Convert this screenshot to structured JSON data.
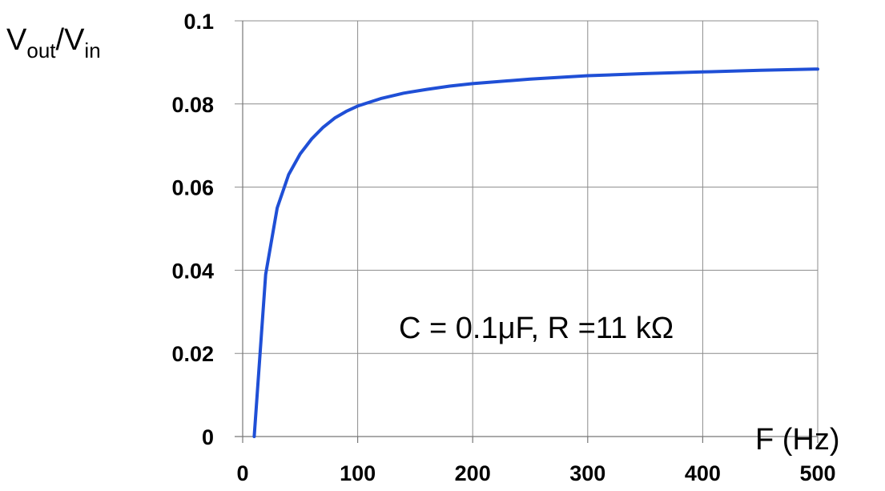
{
  "chart_data": {
    "type": "line",
    "ylabel": {
      "main": "V",
      "sub": "out",
      "sep": "/V",
      "sub2": "in"
    },
    "xlabel": "F (Hz)",
    "annotation": "C = 0.1μF, R =11 kΩ",
    "xlim": [
      0,
      500
    ],
    "ylim": [
      0,
      0.1
    ],
    "x_ticks": [
      "0",
      "100",
      "200",
      "300",
      "400",
      "500"
    ],
    "y_ticks": [
      "0",
      "0.02",
      "0.04",
      "0.06",
      "0.08",
      "0.1"
    ],
    "grid": true,
    "line_color": "#1f4fd6",
    "series": [
      {
        "x": [
          10,
          20,
          30,
          40,
          50,
          60,
          70,
          80,
          90,
          100,
          120,
          140,
          160,
          180,
          200,
          250,
          300,
          350,
          400,
          450,
          500
        ],
        "y": [
          0,
          0.039,
          0.055,
          0.063,
          0.068,
          0.0716,
          0.0744,
          0.0766,
          0.0782,
          0.0795,
          0.0813,
          0.0826,
          0.0835,
          0.0843,
          0.0849,
          0.086,
          0.0868,
          0.0873,
          0.0877,
          0.0881,
          0.0884
        ]
      }
    ]
  }
}
